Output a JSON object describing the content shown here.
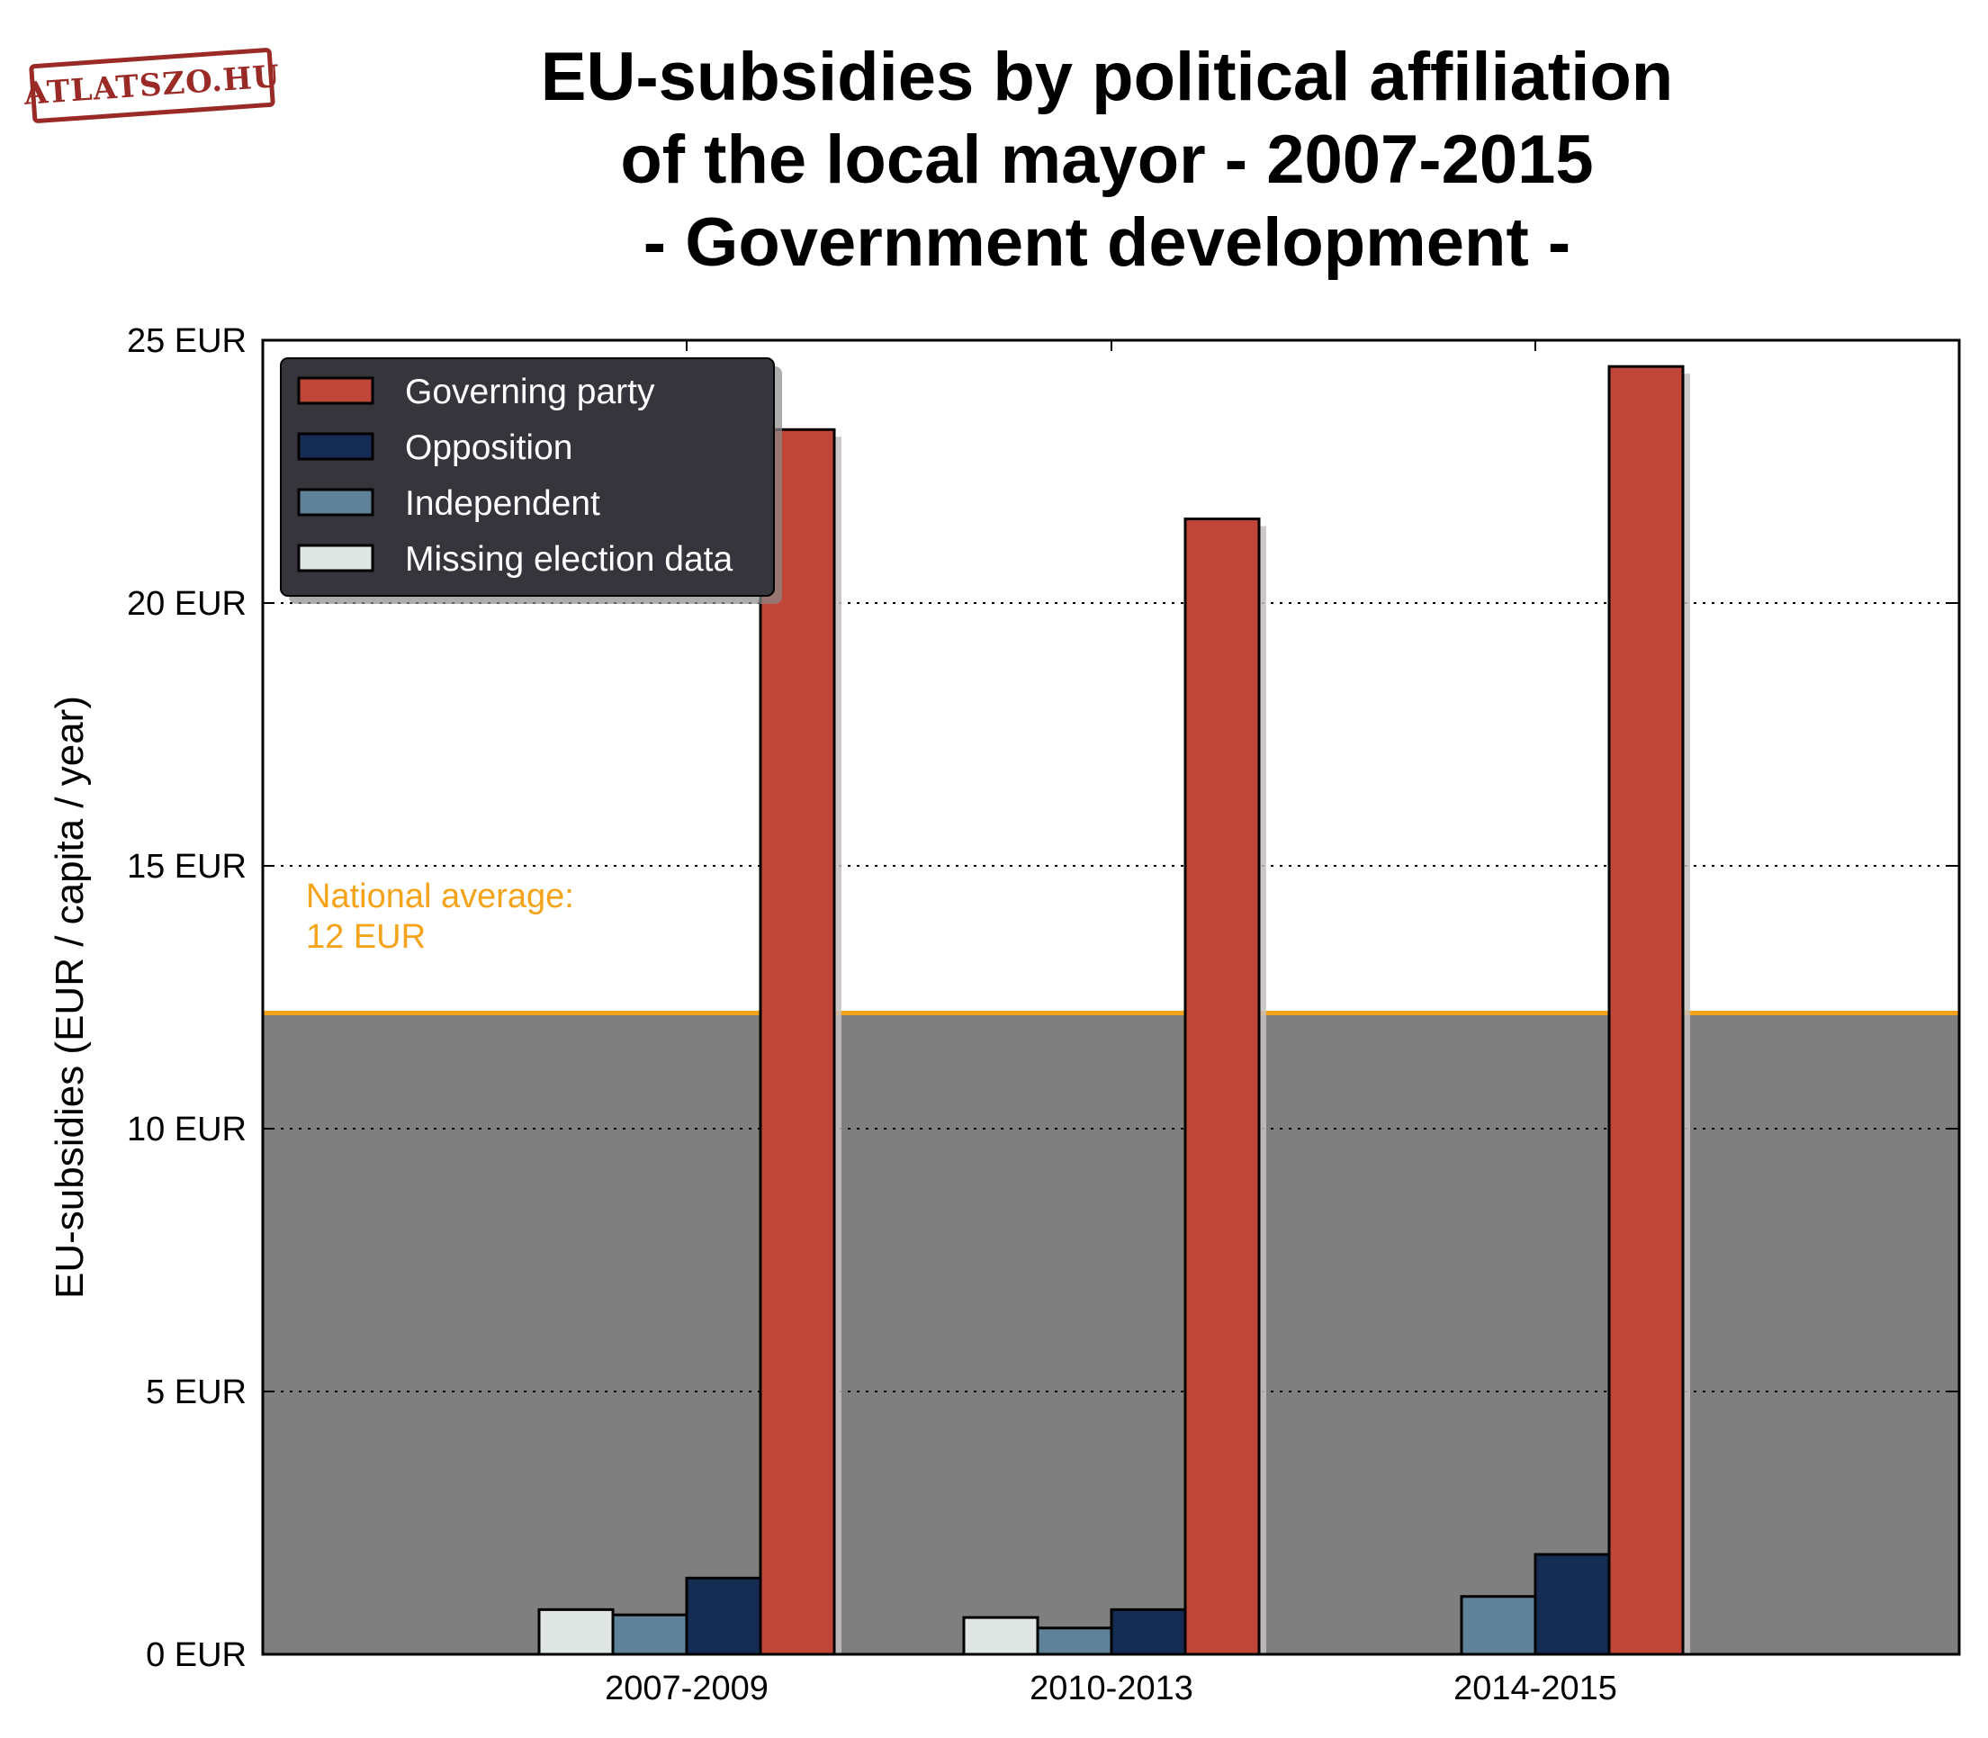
{
  "logo": {
    "text": "ATLATSZO.HU"
  },
  "title_lines": [
    "EU-subsidies by political affiliation",
    "of the local mayor - 2007-2015",
    "- Government development -"
  ],
  "chart_data": {
    "type": "bar",
    "title": "EU-subsidies by political affiliation of the local mayor - 2007-2015 - Government development -",
    "ylabel": "EU-subsidies (EUR / capita / year)",
    "xlabel": "",
    "ylim": [
      0,
      25
    ],
    "yticks": [
      0,
      5,
      10,
      15,
      20,
      25
    ],
    "ytick_labels": [
      "0 EUR",
      "5 EUR",
      "10 EUR",
      "15 EUR",
      "20 EUR",
      "25 EUR"
    ],
    "categories": [
      "2007-2009",
      "2010-2013",
      "2014-2015"
    ],
    "series": [
      {
        "name": "Missing election data",
        "color": "#e0e6e3",
        "values": [
          0.85,
          0.7,
          0
        ]
      },
      {
        "name": "Independent",
        "color": "#5f8299",
        "values": [
          0.75,
          0.5,
          1.1
        ]
      },
      {
        "name": "Opposition",
        "color": "#152d52",
        "values": [
          1.45,
          0.85,
          1.9
        ]
      },
      {
        "name": "Governing party",
        "color": "#c0463a",
        "values": [
          23.3,
          21.6,
          24.5
        ]
      }
    ],
    "legend_order": [
      "Governing party",
      "Opposition",
      "Independent",
      "Missing election data"
    ],
    "legend_position": "top-left",
    "reference_line": {
      "value": 12.2,
      "color": "#f5a31a",
      "label_lines": [
        "National average:",
        "12 EUR"
      ]
    },
    "shade_below_reference": "#7f7f7f",
    "grid": "horizontal dotted"
  }
}
